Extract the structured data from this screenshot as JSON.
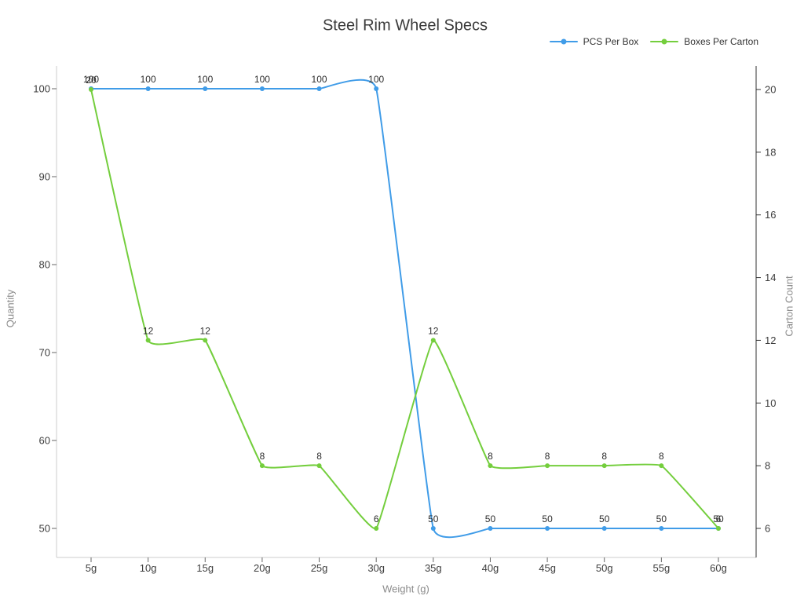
{
  "chart_data": {
    "type": "line",
    "title": "Steel Rim Wheel Specs",
    "xlabel": "Weight (g)",
    "categories": [
      "5g",
      "10g",
      "15g",
      "20g",
      "25g",
      "30g",
      "35g",
      "40g",
      "45g",
      "50g",
      "55g",
      "60g"
    ],
    "y_left": {
      "label": "Quantity",
      "ticks": [
        50,
        60,
        70,
        80,
        90,
        100
      ]
    },
    "y_right": {
      "label": "Carton Count",
      "ticks": [
        6,
        8,
        10,
        12,
        14,
        16,
        18,
        20
      ]
    },
    "series": [
      {
        "name": "PCS Per Box",
        "color": "#409CE8",
        "axis": "left",
        "values": [
          100,
          100,
          100,
          100,
          100,
          100,
          50,
          50,
          50,
          50,
          50,
          50
        ]
      },
      {
        "name": "Boxes Per Carton",
        "color": "#74CE3D",
        "axis": "right",
        "values": [
          20,
          12,
          12,
          8,
          8,
          6,
          12,
          8,
          8,
          8,
          8,
          6
        ]
      }
    ],
    "smooth": true,
    "markers": true,
    "data_labels": true,
    "legend_position": "top-right",
    "grid": false,
    "colors": {
      "axis_line_light": "#cccccc",
      "axis_line_dark": "#333333",
      "tick_mark": "#666666",
      "tick_text": "#3d3d3d",
      "data_label_text": "#2d2d2d"
    }
  }
}
